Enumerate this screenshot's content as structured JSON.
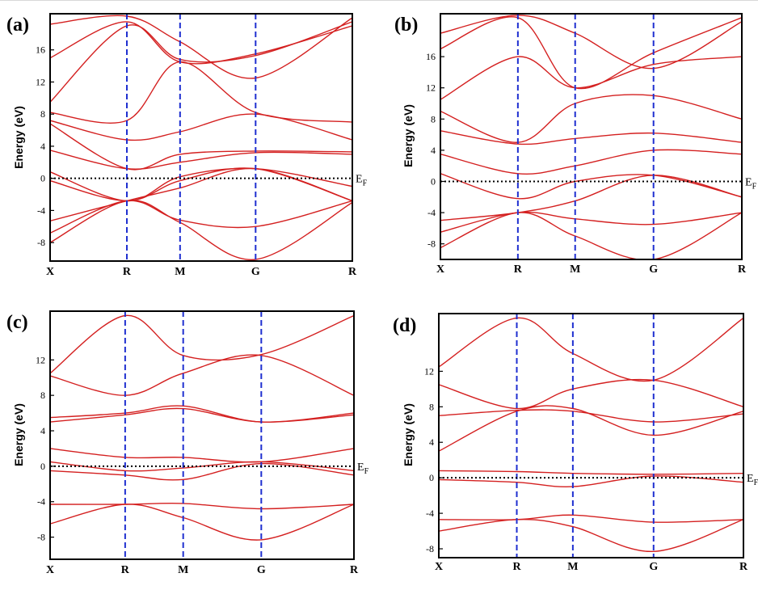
{
  "figure": {
    "fermi_label": "E",
    "fermi_sub": "F",
    "colors": {
      "band": "#d42020",
      "kpath": "#1f2fd0",
      "fermi": "#000000",
      "frame": "#000000"
    }
  },
  "chart_data": [
    {
      "panel": "(a)",
      "type": "line",
      "ylabel": "Energy (eV)",
      "xticks": [
        "X",
        "R",
        "M",
        "G",
        "R"
      ],
      "k_positions": [
        0,
        0.254,
        0.43,
        0.68,
        1.0
      ],
      "yticks": [
        -8,
        -4,
        0,
        4,
        8,
        12,
        16
      ],
      "ylim": [
        -10.3,
        20.5
      ],
      "fermi_level": 0,
      "series": [
        {
          "x": [
            0,
            0.254,
            0.43,
            0.68,
            1.0
          ],
          "y": [
            -8.0,
            -2.8,
            -5.5,
            -10.1,
            -3.0
          ]
        },
        {
          "x": [
            0,
            0.254,
            0.43,
            0.68,
            1.0
          ],
          "y": [
            -6.8,
            -2.8,
            -5.2,
            -6.0,
            -2.8
          ]
        },
        {
          "x": [
            0,
            0.254,
            0.43,
            0.68,
            1.0
          ],
          "y": [
            -5.3,
            -2.8,
            -1.2,
            1.2,
            -2.8
          ]
        },
        {
          "x": [
            0,
            0.254,
            0.43,
            0.68,
            1.0
          ],
          "y": [
            -0.3,
            -2.8,
            -0.3,
            1.2,
            -2.8
          ]
        },
        {
          "x": [
            0,
            0.254,
            0.43,
            0.68,
            1.0
          ],
          "y": [
            0.8,
            -2.8,
            0.2,
            1.2,
            -1.0
          ]
        },
        {
          "x": [
            0,
            0.254,
            0.43,
            0.68,
            1.0
          ],
          "y": [
            3.5,
            1.2,
            2.0,
            3.2,
            3.0
          ]
        },
        {
          "x": [
            0,
            0.254,
            0.43,
            0.68,
            1.0
          ],
          "y": [
            6.8,
            1.2,
            3.0,
            3.4,
            3.3
          ]
        },
        {
          "x": [
            0,
            0.254,
            0.43,
            0.68,
            1.0
          ],
          "y": [
            7.2,
            4.8,
            5.8,
            8.0,
            4.8
          ]
        },
        {
          "x": [
            0,
            0.254,
            0.43,
            0.68,
            1.0
          ],
          "y": [
            8.2,
            7.2,
            14.5,
            8.2,
            7.0
          ]
        },
        {
          "x": [
            0,
            0.254,
            0.43,
            0.68,
            1.0
          ],
          "y": [
            9.5,
            19.0,
            14.8,
            15.3,
            19.5
          ]
        },
        {
          "x": [
            0,
            0.254,
            0.43,
            0.68,
            1.0
          ],
          "y": [
            15.0,
            19.5,
            14.5,
            15.5,
            19.0
          ]
        },
        {
          "x": [
            0,
            0.254,
            0.43,
            0.68,
            1.0
          ],
          "y": [
            19.2,
            20.2,
            17.0,
            12.5,
            20.0
          ]
        }
      ]
    },
    {
      "panel": "(b)",
      "type": "line",
      "ylabel": "Energy (eV)",
      "xticks": [
        "X",
        "R",
        "M",
        "G",
        "R"
      ],
      "k_positions": [
        0,
        0.257,
        0.447,
        0.707,
        1.0
      ],
      "yticks": [
        -8,
        -4,
        0,
        4,
        8,
        12,
        16
      ],
      "ylim": [
        -10.0,
        21.5
      ],
      "fermi_level": 0,
      "series": [
        {
          "x": [
            0,
            0.257,
            0.447,
            0.707,
            1.0
          ],
          "y": [
            -8.5,
            -4.0,
            -7.0,
            -10.0,
            -4.0
          ]
        },
        {
          "x": [
            0,
            0.257,
            0.447,
            0.707,
            1.0
          ],
          "y": [
            -6.5,
            -4.0,
            -4.8,
            -5.5,
            -4.0
          ]
        },
        {
          "x": [
            0,
            0.257,
            0.447,
            0.707,
            1.0
          ],
          "y": [
            -5.0,
            -4.0,
            -2.5,
            0.8,
            -2.0
          ]
        },
        {
          "x": [
            0,
            0.257,
            0.447,
            0.707,
            1.0
          ],
          "y": [
            1.0,
            -2.2,
            0.0,
            0.8,
            -2.0
          ]
        },
        {
          "x": [
            0,
            0.257,
            0.447,
            0.707,
            1.0
          ],
          "y": [
            3.5,
            1.0,
            2.0,
            4.0,
            3.5
          ]
        },
        {
          "x": [
            0,
            0.257,
            0.447,
            0.707,
            1.0
          ],
          "y": [
            6.5,
            4.8,
            5.5,
            6.2,
            5.0
          ]
        },
        {
          "x": [
            0,
            0.257,
            0.447,
            0.707,
            1.0
          ],
          "y": [
            9.0,
            5.0,
            10.0,
            11.0,
            8.0
          ]
        },
        {
          "x": [
            0,
            0.257,
            0.447,
            0.707,
            1.0
          ],
          "y": [
            10.5,
            16.0,
            12.0,
            15.0,
            16.0
          ]
        },
        {
          "x": [
            0,
            0.257,
            0.447,
            0.707,
            1.0
          ],
          "y": [
            17.0,
            21.0,
            12.0,
            16.5,
            21.0
          ]
        },
        {
          "x": [
            0,
            0.257,
            0.447,
            0.707,
            1.0
          ],
          "y": [
            19.0,
            21.3,
            19.0,
            14.5,
            20.5
          ]
        }
      ]
    },
    {
      "panel": "(c)",
      "type": "line",
      "ylabel": "Energy (eV)",
      "xticks": [
        "X",
        "R",
        "M",
        "G",
        "R"
      ],
      "k_positions": [
        0,
        0.247,
        0.438,
        0.695,
        1.0
      ],
      "yticks": [
        -8,
        -4,
        0,
        4,
        8,
        12
      ],
      "ylim": [
        -10.5,
        17.5
      ],
      "fermi_level": 0,
      "series": [
        {
          "x": [
            0,
            0.247,
            0.438,
            0.695,
            1.0
          ],
          "y": [
            -6.5,
            -4.3,
            -5.8,
            -8.3,
            -4.3
          ]
        },
        {
          "x": [
            0,
            0.247,
            0.438,
            0.695,
            1.0
          ],
          "y": [
            -4.3,
            -4.3,
            -4.2,
            -4.8,
            -4.3
          ]
        },
        {
          "x": [
            0,
            0.247,
            0.438,
            0.695,
            1.0
          ],
          "y": [
            -0.5,
            -1.0,
            -1.5,
            0.3,
            -1.0
          ]
        },
        {
          "x": [
            0,
            0.247,
            0.438,
            0.695,
            1.0
          ],
          "y": [
            0.5,
            -0.5,
            -0.2,
            0.5,
            -0.5
          ]
        },
        {
          "x": [
            0,
            0.247,
            0.438,
            0.695,
            1.0
          ],
          "y": [
            2.0,
            1.0,
            1.0,
            0.5,
            2.0
          ]
        },
        {
          "x": [
            0,
            0.247,
            0.438,
            0.695,
            1.0
          ],
          "y": [
            5.0,
            5.8,
            6.5,
            5.0,
            5.8
          ]
        },
        {
          "x": [
            0,
            0.247,
            0.438,
            0.695,
            1.0
          ],
          "y": [
            5.5,
            6.0,
            6.8,
            5.0,
            6.0
          ]
        },
        {
          "x": [
            0,
            0.247,
            0.438,
            0.695,
            1.0
          ],
          "y": [
            10.2,
            8.0,
            10.5,
            12.5,
            8.0
          ]
        },
        {
          "x": [
            0,
            0.247,
            0.438,
            0.695,
            1.0
          ],
          "y": [
            10.5,
            17.0,
            12.5,
            12.6,
            17.0
          ]
        }
      ]
    },
    {
      "panel": "(d)",
      "type": "line",
      "ylabel": "Energy (eV)",
      "xticks": [
        "X",
        "R",
        "M",
        "G",
        "R"
      ],
      "k_positions": [
        0,
        0.256,
        0.44,
        0.705,
        1.0
      ],
      "yticks": [
        -8,
        -4,
        0,
        4,
        8,
        12
      ],
      "ylim": [
        -9.0,
        18.5
      ],
      "fermi_level": 0,
      "series": [
        {
          "x": [
            0,
            0.256,
            0.44,
            0.705,
            1.0
          ],
          "y": [
            -6.0,
            -4.7,
            -5.5,
            -8.3,
            -4.7
          ]
        },
        {
          "x": [
            0,
            0.256,
            0.44,
            0.705,
            1.0
          ],
          "y": [
            -4.7,
            -4.7,
            -4.2,
            -5.0,
            -4.7
          ]
        },
        {
          "x": [
            0,
            0.256,
            0.44,
            0.705,
            1.0
          ],
          "y": [
            -0.2,
            -0.5,
            -1.0,
            0.2,
            -0.5
          ]
        },
        {
          "x": [
            0,
            0.256,
            0.44,
            0.705,
            1.0
          ],
          "y": [
            0.8,
            0.7,
            0.5,
            0.4,
            0.5
          ]
        },
        {
          "x": [
            0,
            0.256,
            0.44,
            0.705,
            1.0
          ],
          "y": [
            3.0,
            7.5,
            7.8,
            4.8,
            7.5
          ]
        },
        {
          "x": [
            0,
            0.256,
            0.44,
            0.705,
            1.0
          ],
          "y": [
            7.0,
            7.6,
            7.5,
            6.3,
            7.2
          ]
        },
        {
          "x": [
            0,
            0.256,
            0.44,
            0.705,
            1.0
          ],
          "y": [
            10.5,
            7.8,
            10.0,
            11.0,
            8.0
          ]
        },
        {
          "x": [
            0,
            0.256,
            0.44,
            0.705,
            1.0
          ],
          "y": [
            12.5,
            18.0,
            14.0,
            11.0,
            18.0
          ]
        }
      ]
    }
  ]
}
